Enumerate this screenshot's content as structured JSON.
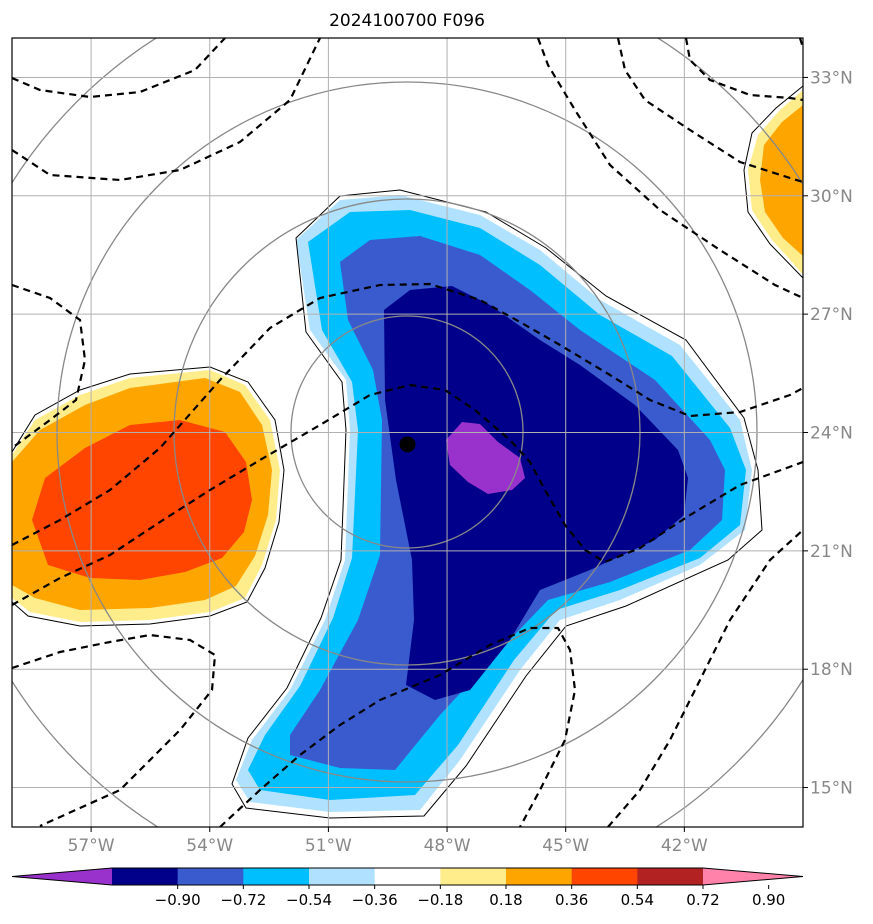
{
  "title": "2024100700 F096",
  "map": {
    "lon_range": [
      -59.0,
      -39.0
    ],
    "lat_range": [
      14.0,
      34.0
    ],
    "lon_ticks": [
      {
        "value": -57,
        "label": "57°W"
      },
      {
        "value": -54,
        "label": "54°W"
      },
      {
        "value": -51,
        "label": "51°W"
      },
      {
        "value": -48,
        "label": "48°W"
      },
      {
        "value": -45,
        "label": "45°W"
      },
      {
        "value": -42,
        "label": "42°W"
      }
    ],
    "lat_ticks": [
      {
        "value": 33,
        "label": "33°N"
      },
      {
        "value": 30,
        "label": "30°N"
      },
      {
        "value": 27,
        "label": "27°N"
      },
      {
        "value": 24,
        "label": "24°N"
      },
      {
        "value": 21,
        "label": "21°N"
      },
      {
        "value": 18,
        "label": "18°N"
      },
      {
        "value": 15,
        "label": "15°N"
      }
    ],
    "gridlines": true,
    "center_marker": {
      "lon": -49.0,
      "lat": 23.7
    },
    "range_rings_deg": [
      2.9,
      5.9,
      8.8,
      11.7
    ]
  },
  "colorbar": {
    "levels": [
      "−0.90",
      "−0.72",
      "−0.54",
      "−0.36",
      "−0.18",
      "0.18",
      "0.36",
      "0.54",
      "0.72",
      "0.90"
    ],
    "colors": [
      "#9932cc",
      "#00008b",
      "#3a5bcd",
      "#00bfff",
      "#b0e2ff",
      "#ffffff",
      "#ffec8b",
      "#ffa500",
      "#ff4500",
      "#b22222",
      "#ff82ab"
    ],
    "extend": "both"
  },
  "fill_colors": {
    "purple": "#9932cc",
    "navy": "#00008b",
    "royal": "#3a5bcd",
    "sky": "#00bfff",
    "pale_blue": "#b0e2ff",
    "light_yellow": "#ffec8b",
    "orange": "#ffa500",
    "red_orange": "#ff4500"
  }
}
